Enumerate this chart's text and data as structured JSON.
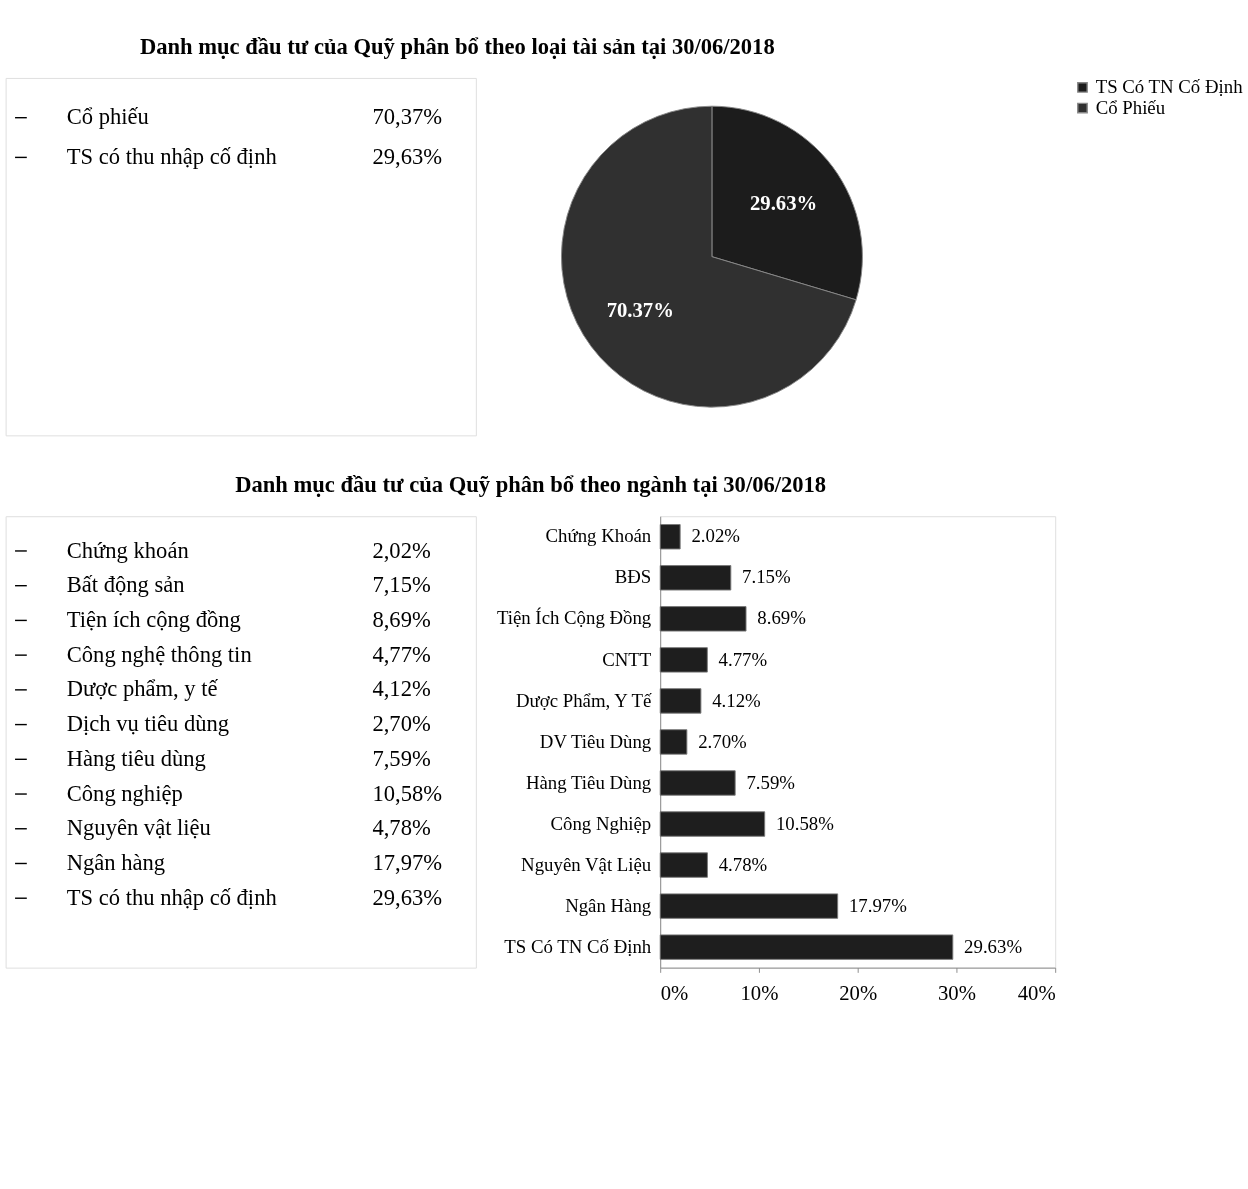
{
  "chart_data": [
    {
      "type": "other",
      "annotations": [
        "Cổ phiếu",
        "70,37%",
        "TS có thu nhập cố định",
        "29,63%"
      ]
    },
    {
      "type": "pie",
      "title": "Danh mục đầu tư của Quỹ phân bổ theo loại tài sản tại 30/06/2018",
      "categories": [
        "TS Có TN Cố Định",
        "Cổ Phiếu"
      ],
      "values": [
        29.63,
        70.37
      ],
      "colors": [
        "#1c1c1c",
        "#303030"
      ],
      "value_labels": [
        "29.63%",
        "70.37%"
      ],
      "legend": "right"
    },
    {
      "type": "other",
      "annotations": [
        "Chứng khoán",
        "2,02%",
        "Bất động sản",
        "7,15%",
        "Tiện ích cộng đồng",
        "8,69%",
        "Công nghệ thông tin",
        "4,77%",
        "Dược phẩm, y tế",
        "4,12%",
        "Dịch vụ tiêu dùng",
        "2,70%",
        "Hàng tiêu dùng",
        "7,59%",
        "Công nghiệp",
        "10,58%",
        "Nguyên vật liệu",
        "4,78%",
        "Ngân hàng",
        "17,97%",
        "TS có thu nhập cố định",
        "29,63%"
      ]
    },
    {
      "type": "bar",
      "title": "Danh mục đầu tư của Quỹ phân bổ theo ngành tại 30/06/2018",
      "orientation": "horizontal",
      "categories": [
        "Chứng Khoán",
        "BĐS",
        "Tiện Ích Cộng Đồng",
        "CNTT",
        "Dược Phẩm, Y Tế",
        "DV Tiêu Dùng",
        "Hàng Tiêu Dùng",
        "Công Nghiệp",
        "Nguyên Vật Liệu",
        "Ngân Hàng",
        "TS Có TN Cố Định"
      ],
      "values": [
        2.02,
        7.15,
        8.69,
        4.77,
        4.12,
        2.7,
        7.59,
        10.58,
        4.78,
        17.97,
        29.63
      ],
      "color": "#1e1e1e",
      "value_labels": [
        "2.02%",
        "7.15%",
        "8.69%",
        "4.77%",
        "4.12%",
        "2.70%",
        "7.59%",
        "10.58%",
        "4.78%",
        "17.97%",
        "29.63%"
      ],
      "xlim": [
        0,
        40
      ],
      "xticks": [
        {
          "value": 0,
          "label": "0%"
        },
        {
          "value": 10,
          "label": "10%"
        },
        {
          "value": 20,
          "label": "20%"
        },
        {
          "value": 30,
          "label": "30%"
        },
        {
          "value": 40,
          "label": "40%"
        }
      ]
    }
  ]
}
